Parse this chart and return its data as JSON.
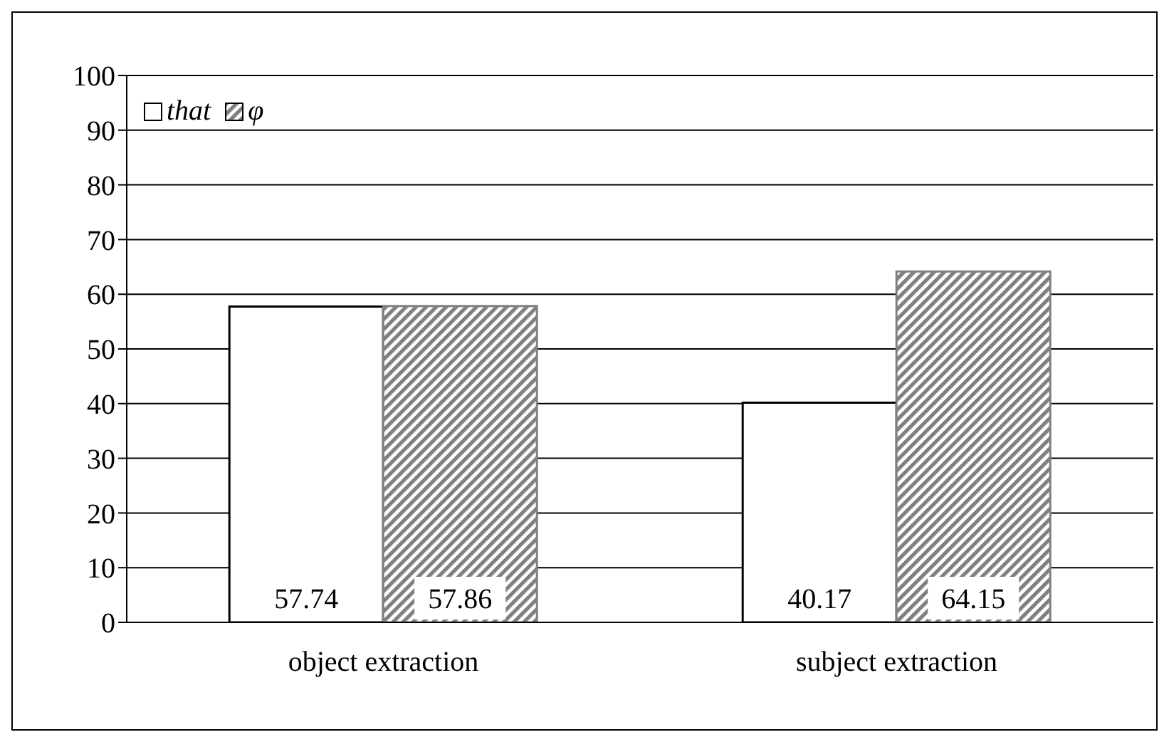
{
  "chart_data": {
    "type": "bar",
    "categories": [
      "object extraction",
      "subject extraction"
    ],
    "series": [
      {
        "name": "that",
        "color": "#ffffff",
        "values": [
          57.74,
          40.17
        ]
      },
      {
        "name": "φ",
        "color": "#808080",
        "values": [
          57.86,
          64.15
        ]
      }
    ],
    "ylim": [
      0,
      100
    ],
    "yticks": [
      0,
      10,
      20,
      30,
      40,
      50,
      60,
      70,
      80,
      90,
      100
    ],
    "grid": "y",
    "legend": "top left",
    "data_labels": true
  }
}
